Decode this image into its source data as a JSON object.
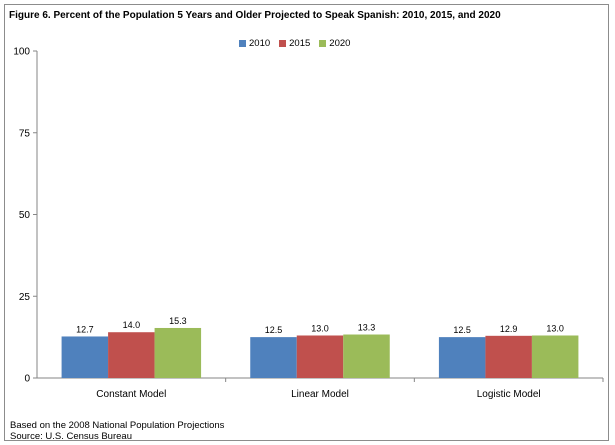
{
  "title": "Figure 6.  Percent of the Population 5 Years and Older Projected to Speak Spanish:  2010, 2015, and 2020",
  "notes": {
    "basis": "Based on the 2008 National Population Projections",
    "source": "Source:  U.S. Census Bureau"
  },
  "chart_data": {
    "type": "bar",
    "title": "Figure 6.  Percent of the Population 5 Years and Older Projected to Speak Spanish:  2010, 2015, and 2020",
    "xlabel": "",
    "ylabel": "",
    "categories": [
      "Constant Model",
      "Linear Model",
      "Logistic Model"
    ],
    "series": [
      {
        "name": "2010",
        "color": "#4f81bd",
        "values": [
          12.7,
          12.5,
          12.5
        ]
      },
      {
        "name": "2015",
        "color": "#c0504d",
        "values": [
          14.0,
          13.0,
          12.9
        ]
      },
      {
        "name": "2020",
        "color": "#9bbb59",
        "values": [
          15.3,
          13.3,
          13.0
        ]
      }
    ],
    "ylim": [
      0,
      100
    ],
    "yticks": [
      0,
      25,
      50,
      75,
      100
    ],
    "grid": false,
    "legend": "top-center",
    "data_labels": true
  }
}
